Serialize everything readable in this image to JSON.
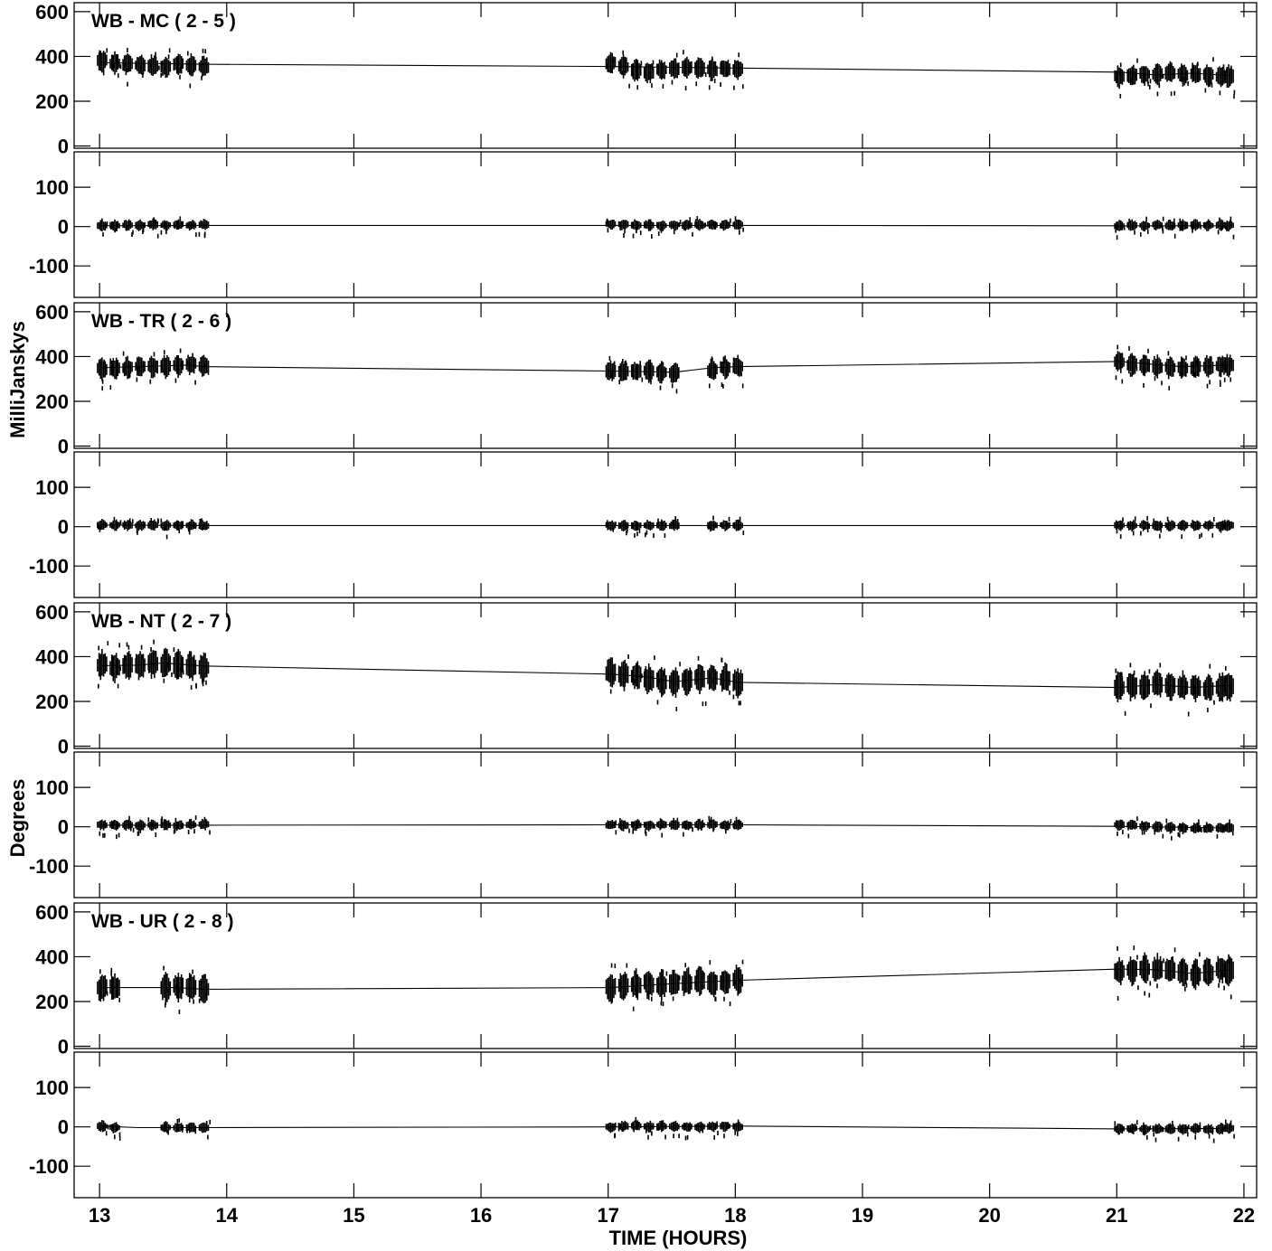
{
  "chart_data": {
    "type": "scatter",
    "xlabel": "TIME (HOURS)",
    "ylabel_amplitude": "MilliJanskys",
    "ylabel_phase": "Degrees",
    "xlim": [
      12.8,
      22.1
    ],
    "x_ticks": [
      13,
      14,
      15,
      16,
      17,
      18,
      19,
      20,
      21,
      22
    ],
    "amplitude_ticks": [
      0,
      200,
      400,
      600
    ],
    "amplitude_ylim": [
      -10,
      640
    ],
    "phase_ticks": [
      -100,
      0,
      100
    ],
    "phase_ylim": [
      -180,
      190
    ],
    "scan_times": [
      13.02,
      13.12,
      13.22,
      13.32,
      13.42,
      13.52,
      13.62,
      13.72,
      13.82,
      17.02,
      17.12,
      17.22,
      17.32,
      17.42,
      17.52,
      17.62,
      17.72,
      17.82,
      17.92,
      18.02,
      21.02,
      21.12,
      21.22,
      21.32,
      21.42,
      21.52,
      21.62,
      21.72,
      21.82,
      21.88
    ],
    "panels": [
      {
        "title": "WB - MC ( 2 - 5 )",
        "amplitude": {
          "scan_levels": [
            380,
            370,
            365,
            360,
            360,
            355,
            365,
            360,
            355,
            370,
            355,
            340,
            330,
            340,
            345,
            350,
            345,
            340,
            345,
            345,
            310,
            315,
            320,
            320,
            325,
            320,
            320,
            315,
            310,
            312
          ],
          "model": [
            [
              13.02,
              372
            ],
            [
              13.82,
              365
            ],
            [
              17.02,
              355
            ],
            [
              18.02,
              348
            ],
            [
              21.02,
              330
            ],
            [
              21.3,
              318
            ],
            [
              21.6,
              325
            ],
            [
              21.88,
              315
            ]
          ]
        },
        "phase": {
          "scan_levels": [
            2,
            3,
            4,
            3,
            5,
            4,
            5,
            4,
            5,
            6,
            5,
            4,
            4,
            3,
            4,
            3,
            4,
            5,
            4,
            5,
            2,
            3,
            3,
            4,
            3,
            3,
            4,
            3,
            3,
            3
          ],
          "model": [
            [
              13.02,
              2
            ],
            [
              13.82,
              3
            ],
            [
              17.02,
              3
            ],
            [
              18.02,
              3
            ],
            [
              21.02,
              2
            ],
            [
              21.88,
              2
            ]
          ]
        }
      },
      {
        "title": "WB - TR ( 2 - 6 )",
        "amplitude": {
          "scan_levels": [
            345,
            345,
            350,
            355,
            355,
            355,
            360,
            365,
            355,
            335,
            330,
            335,
            335,
            330,
            325,
            0,
            0,
            340,
            350,
            355,
            375,
            365,
            360,
            355,
            350,
            350,
            350,
            355,
            360,
            362
          ],
          "model": [
            [
              13.02,
              350
            ],
            [
              13.7,
              362
            ],
            [
              13.82,
              355
            ],
            [
              17.02,
              335
            ],
            [
              17.52,
              330
            ],
            [
              17.82,
              350
            ],
            [
              18.02,
              355
            ],
            [
              21.02,
              378
            ],
            [
              21.5,
              355
            ],
            [
              21.88,
              362
            ]
          ]
        },
        "phase": {
          "scan_levels": [
            5,
            4,
            4,
            3,
            4,
            3,
            3,
            3,
            3,
            3,
            3,
            3,
            3,
            3,
            3,
            0,
            0,
            4,
            4,
            4,
            4,
            3,
            3,
            3,
            3,
            3,
            3,
            3,
            3,
            3
          ],
          "model": [
            [
              13.02,
              4
            ],
            [
              13.82,
              3
            ],
            [
              17.02,
              3
            ],
            [
              18.02,
              3
            ],
            [
              21.02,
              3
            ],
            [
              21.88,
              3
            ]
          ]
        }
      },
      {
        "title": "WB - NT ( 2 - 7 )",
        "amplitude": {
          "scan_levels": [
            360,
            355,
            360,
            365,
            370,
            365,
            360,
            355,
            350,
            330,
            320,
            315,
            300,
            290,
            285,
            295,
            300,
            305,
            300,
            285,
            265,
            268,
            270,
            275,
            270,
            265,
            260,
            260,
            265,
            270
          ],
          "model": [
            [
              13.02,
              360
            ],
            [
              13.3,
              362
            ],
            [
              13.5,
              372
            ],
            [
              13.82,
              358
            ],
            [
              17.02,
              322
            ],
            [
              17.3,
              310
            ],
            [
              17.52,
              288
            ],
            [
              17.82,
              305
            ],
            [
              18.02,
              285
            ],
            [
              21.02,
              262
            ],
            [
              21.3,
              275
            ],
            [
              21.6,
              262
            ],
            [
              21.88,
              272
            ]
          ]
        },
        "phase": {
          "scan_levels": [
            5,
            4,
            5,
            3,
            4,
            5,
            4,
            5,
            6,
            5,
            4,
            5,
            4,
            6,
            5,
            4,
            5,
            6,
            4,
            5,
            5,
            4,
            2,
            0,
            -2,
            -3,
            -4,
            -4,
            -3,
            -3
          ],
          "model": [
            [
              13.02,
              4
            ],
            [
              13.82,
              4
            ],
            [
              17.02,
              5
            ],
            [
              18.02,
              5
            ],
            [
              21.02,
              1
            ],
            [
              21.88,
              -3
            ]
          ]
        }
      },
      {
        "title": "WB - UR ( 2 - 8 )",
        "amplitude": {
          "scan_levels": [
            260,
            260,
            0,
            0,
            0,
            260,
            265,
            260,
            255,
            265,
            270,
            275,
            280,
            275,
            280,
            285,
            290,
            285,
            290,
            295,
            335,
            340,
            345,
            345,
            340,
            330,
            320,
            330,
            345,
            340
          ],
          "model": [
            [
              13.02,
              262
            ],
            [
              13.6,
              262
            ],
            [
              13.82,
              255
            ],
            [
              17.02,
              262
            ],
            [
              17.52,
              280
            ],
            [
              18.02,
              295
            ],
            [
              21.02,
              345
            ],
            [
              21.3,
              342
            ],
            [
              21.6,
              325
            ],
            [
              21.88,
              340
            ]
          ]
        },
        "phase": {
          "scan_levels": [
            2,
            -2,
            0,
            0,
            0,
            -1,
            -2,
            -2,
            -3,
            0,
            1,
            2,
            1,
            2,
            1,
            0,
            0,
            1,
            2,
            1,
            -5,
            -4,
            -6,
            -5,
            -6,
            -5,
            -4,
            -6,
            -5,
            -4
          ],
          "model": [
            [
              13.02,
              2
            ],
            [
              13.3,
              -2
            ],
            [
              13.82,
              -2
            ],
            [
              17.02,
              0
            ],
            [
              18.02,
              2
            ],
            [
              21.02,
              -5
            ],
            [
              21.88,
              -4
            ]
          ]
        }
      }
    ]
  }
}
